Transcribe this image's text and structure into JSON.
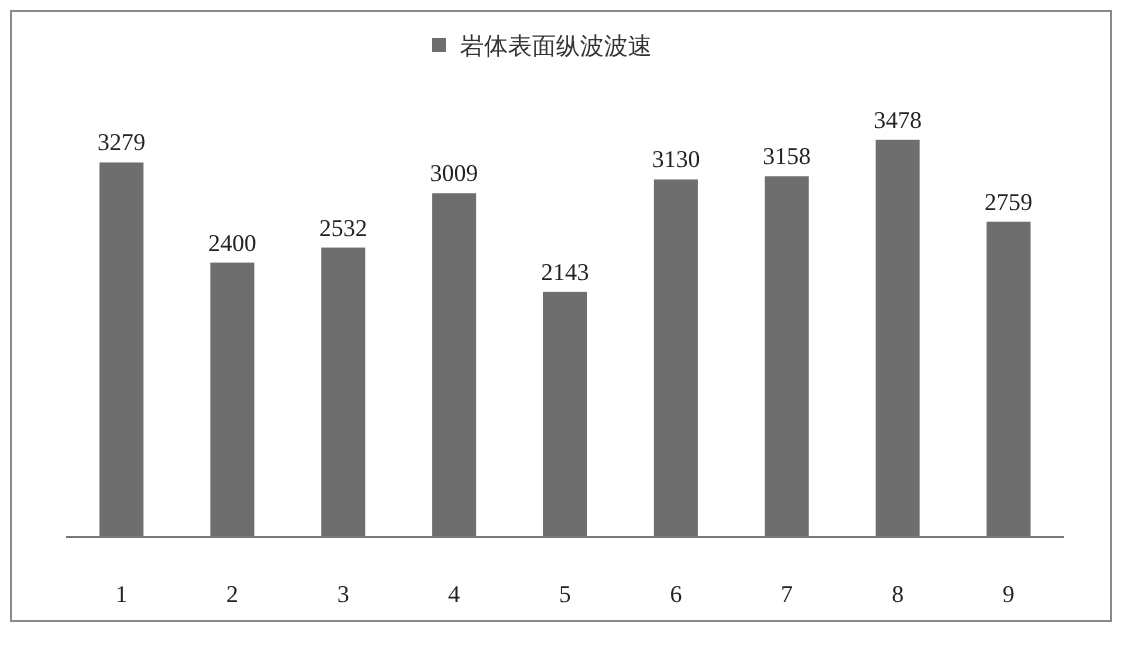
{
  "chart_data": {
    "type": "bar",
    "categories": [
      "1",
      "2",
      "3",
      "4",
      "5",
      "6",
      "7",
      "8",
      "9"
    ],
    "series": [
      {
        "name": "岩体表面纵波波速",
        "color": "#6e6e6e",
        "values": [
          3279,
          2400,
          2532,
          3009,
          2143,
          3130,
          3158,
          3478,
          2759
        ]
      }
    ],
    "data_labels": true,
    "legend": "top",
    "grid": false
  }
}
